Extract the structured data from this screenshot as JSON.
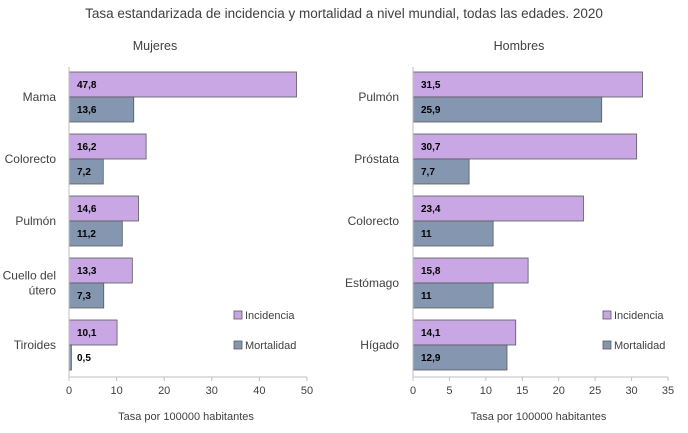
{
  "title": "Tasa estandarizada de incidencia y mortalidad a nivel mundial, todas las edades. 2020",
  "chart_data": [
    {
      "type": "bar",
      "orientation": "horizontal",
      "title": "Mujeres",
      "xlabel": "Tasa por 100000 habitantes",
      "xlim": [
        0,
        50
      ],
      "xticks": [
        0,
        10,
        20,
        30,
        40,
        50
      ],
      "categories": [
        "Mama",
        "Colorecto",
        "Pulmón",
        "Cuello del útero",
        "Tiroides"
      ],
      "category_lines": [
        [
          "Mama"
        ],
        [
          "Colorecto"
        ],
        [
          "Pulmón"
        ],
        [
          "Cuello del",
          "útero"
        ],
        [
          "Tiroides"
        ]
      ],
      "series": [
        {
          "name": "Incidencia",
          "color": "#c9a6e4",
          "values": [
            47.8,
            16.2,
            14.6,
            13.3,
            10.1
          ],
          "labels": [
            "47,8",
            "16,2",
            "14,6",
            "13,3",
            "10,1"
          ]
        },
        {
          "name": "Mortalidad",
          "color": "#8496b0",
          "values": [
            13.6,
            7.2,
            11.2,
            7.3,
            0.5
          ],
          "labels": [
            "13,6",
            "7,2",
            "11,2",
            "7,3",
            "0,5"
          ]
        }
      ],
      "legend": "bottom-right",
      "grid": false
    },
    {
      "type": "bar",
      "orientation": "horizontal",
      "title": "Hombres",
      "xlabel": "Tasa por 100000 habitantes",
      "xlim": [
        0,
        35
      ],
      "xticks": [
        0,
        5,
        10,
        15,
        20,
        25,
        30,
        35
      ],
      "categories": [
        "Pulmón",
        "Próstata",
        "Colorecto",
        "Estómago",
        "Hígado"
      ],
      "category_lines": [
        [
          "Pulmón"
        ],
        [
          "Próstata"
        ],
        [
          "Colorecto"
        ],
        [
          "Estómago"
        ],
        [
          "Hígado"
        ]
      ],
      "series": [
        {
          "name": "Incidencia",
          "color": "#c9a6e4",
          "values": [
            31.5,
            30.7,
            23.4,
            15.8,
            14.1
          ],
          "labels": [
            "31,5",
            "30,7",
            "23,4",
            "15,8",
            "14,1"
          ]
        },
        {
          "name": "Mortalidad",
          "color": "#8496b0",
          "values": [
            25.9,
            7.7,
            11,
            11,
            12.9
          ],
          "labels": [
            "25,9",
            "7,7",
            "11",
            "11",
            "12,9"
          ]
        }
      ],
      "legend": "bottom-right",
      "grid": false
    }
  ]
}
